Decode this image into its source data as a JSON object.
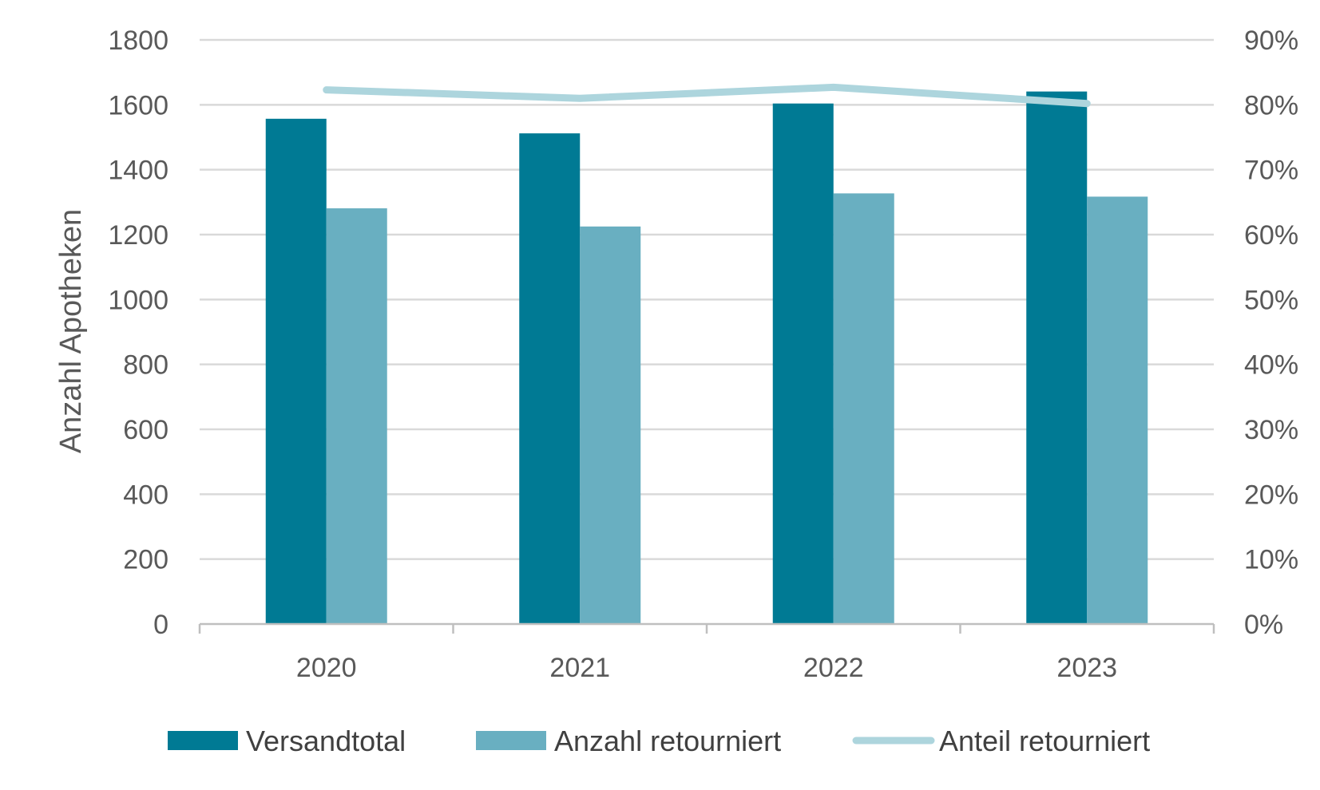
{
  "chart_data": {
    "type": "bar",
    "categories": [
      "2020",
      "2021",
      "2022",
      "2023"
    ],
    "series": [
      {
        "name": "Versandtotal",
        "type": "bar",
        "axis": "left",
        "color": "#007a94",
        "values": [
          1557,
          1512,
          1604,
          1641
        ]
      },
      {
        "name": "Anzahl retourniert",
        "type": "bar",
        "axis": "left",
        "color": "#69afc1",
        "values": [
          1281,
          1225,
          1327,
          1317
        ]
      },
      {
        "name": "Anteil retourniert",
        "type": "line",
        "axis": "right",
        "color": "#add5dd",
        "values": [
          0.823,
          0.81,
          0.827,
          0.802
        ]
      }
    ],
    "ylabel": "Anzahl Apotheken",
    "ylim": [
      0,
      1800
    ],
    "yticks": [
      "0",
      "200",
      "400",
      "600",
      "800",
      "1000",
      "1200",
      "1400",
      "1600",
      "1800"
    ],
    "y2lim": [
      0,
      0.9
    ],
    "y2ticks": [
      "0%",
      "10%",
      "20%",
      "30%",
      "40%",
      "50%",
      "60%",
      "70%",
      "80%",
      "90%"
    ],
    "grid": true,
    "legend_position": "bottom"
  }
}
